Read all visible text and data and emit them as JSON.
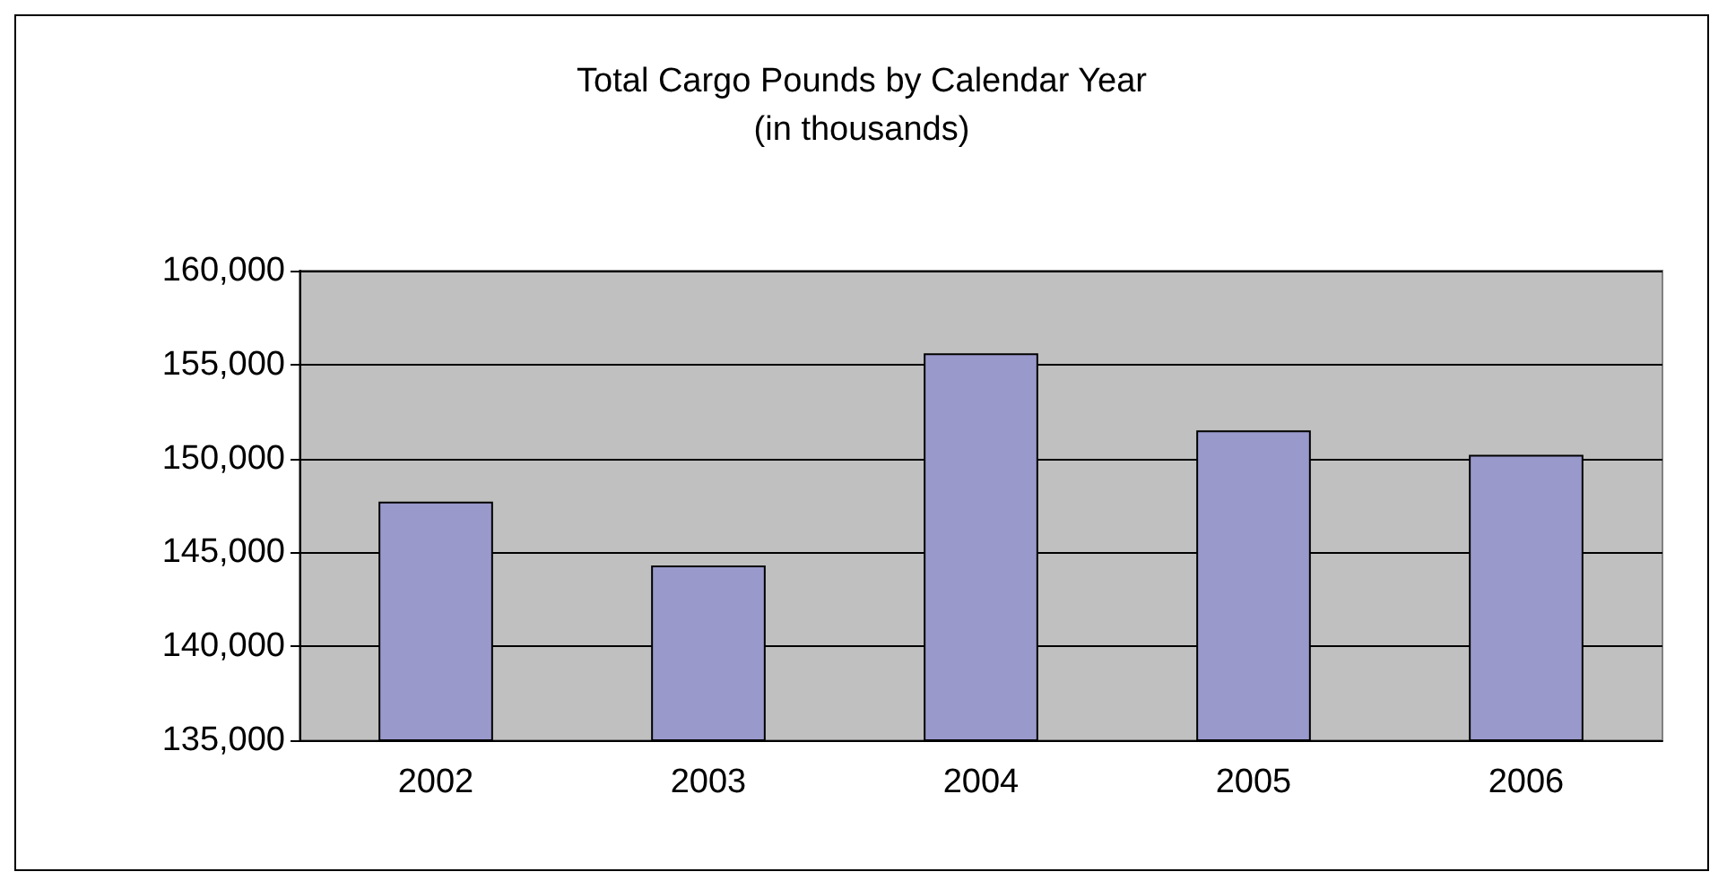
{
  "chart_data": {
    "type": "bar",
    "title": "Total Cargo Pounds by Calendar Year",
    "subtitle": "(in thousands)",
    "categories": [
      "2002",
      "2003",
      "2004",
      "2005",
      "2006"
    ],
    "values": [
      147700,
      144300,
      155600,
      151500,
      150200
    ],
    "color": "#9999cc",
    "ylim": [
      135000,
      160000
    ],
    "yticks": [
      {
        "value": 135000,
        "label": "135,000"
      },
      {
        "value": 140000,
        "label": "140,000"
      },
      {
        "value": 145000,
        "label": "145,000"
      },
      {
        "value": 150000,
        "label": "150,000"
      },
      {
        "value": 155000,
        "label": "155,000"
      },
      {
        "value": 160000,
        "label": "160,000"
      }
    ],
    "grid": "y"
  }
}
